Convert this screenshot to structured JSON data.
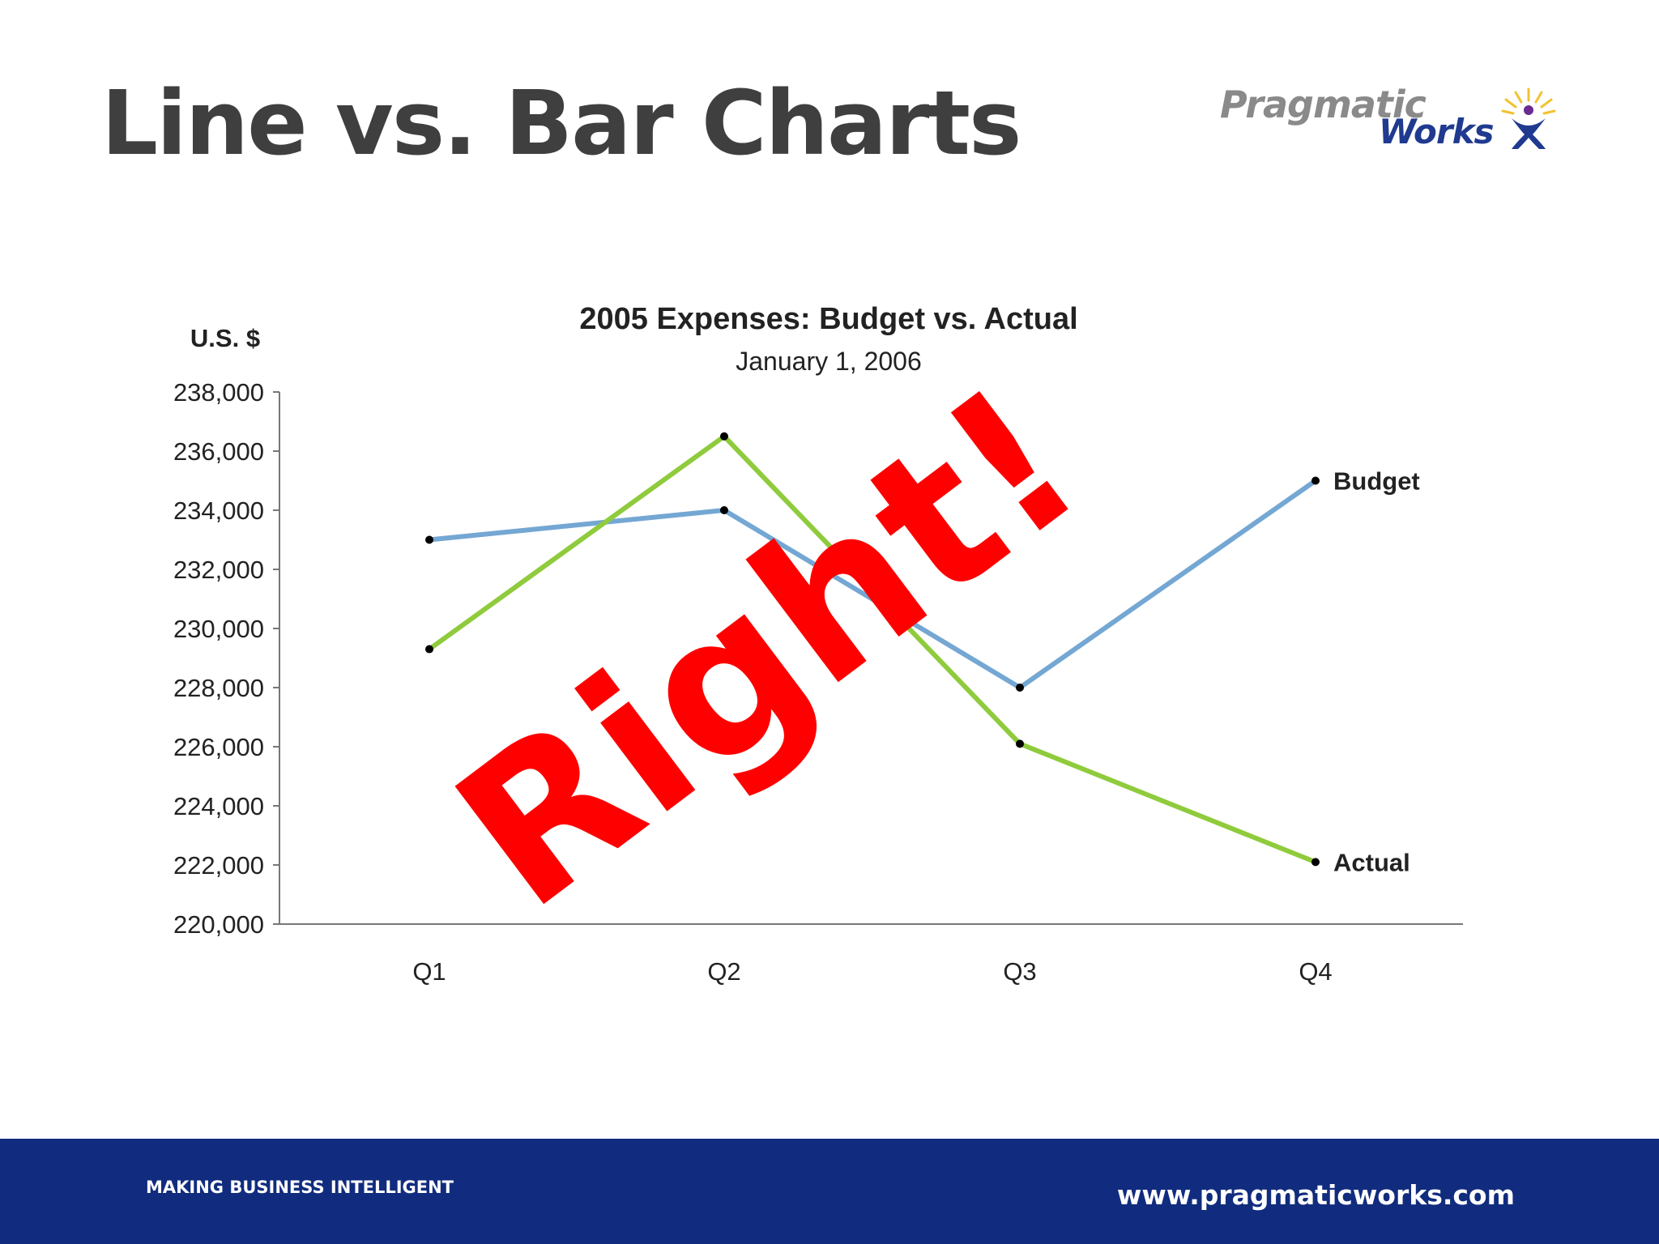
{
  "slide": {
    "title": "Line vs. Bar Charts",
    "stamp": "Right!"
  },
  "logo": {
    "line1": "Pragmatic",
    "line2": "Works",
    "icon": "figure-with-rays-icon"
  },
  "footer": {
    "tagline": "MAKING BUSINESS INTELLIGENT",
    "url": "www.pragmaticworks.com",
    "color": "#112c7e"
  },
  "chart_data": {
    "type": "line",
    "title": "2005 Expenses: Budget vs. Actual",
    "subtitle": "January 1, 2006",
    "ylabel": "U.S. $",
    "xlabel": "",
    "categories": [
      "Q1",
      "Q2",
      "Q3",
      "Q4"
    ],
    "ylim": [
      220000,
      238000
    ],
    "yticks": [
      220000,
      222000,
      224000,
      226000,
      228000,
      230000,
      232000,
      234000,
      236000,
      238000
    ],
    "ytick_labels": [
      "220,000",
      "222,000",
      "224,000",
      "226,000",
      "228,000",
      "230,000",
      "232,000",
      "234,000",
      "236,000",
      "238,000"
    ],
    "grid": false,
    "legend": "end-of-line labels",
    "series": [
      {
        "name": "Budget",
        "values": [
          233000,
          234000,
          228000,
          235000
        ],
        "color": "#74a7d3"
      },
      {
        "name": "Actual",
        "values": [
          229300,
          236500,
          226100,
          222100
        ],
        "color": "#8fcb3c"
      }
    ]
  }
}
